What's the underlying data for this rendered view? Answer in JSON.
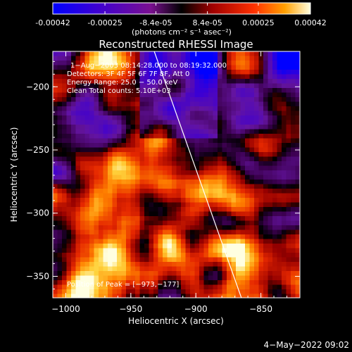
{
  "colorbar": {
    "tick_labels": [
      "-0.00042",
      "-0.00025",
      "-8.4e-05",
      "8.4e-05",
      "0.00025",
      "0.00042"
    ],
    "tick_values": [
      -0.00042,
      -0.00025,
      -8.4e-05,
      8.4e-05,
      0.00025,
      0.00042
    ],
    "range": [
      -0.00042,
      0.00042
    ],
    "units_label": "(photons cm⁻² s⁻¹ asec⁻²)"
  },
  "plot": {
    "title": "Reconstructed RHESSI Image",
    "xlabel": "Heliocentric X (arcsec)",
    "ylabel": "Heliocentric Y (arcsec)",
    "x_ticks": [
      "−1000",
      "−950",
      "−900",
      "−850"
    ],
    "x_tick_values": [
      -1000,
      -950,
      -900,
      -850
    ],
    "y_ticks": [
      "−200",
      "−250",
      "−300",
      "−350"
    ],
    "y_tick_values": [
      -200,
      -250,
      -300,
      -350
    ],
    "xlim": [
      -1010,
      -820
    ],
    "ylim": [
      -367,
      -172
    ],
    "limb_line": [
      [
        -932,
        -172
      ],
      [
        -865,
        -367
      ]
    ],
    "info_lines": [
      "1−Aug−2003 08:14:28.000 to 08:19:32.000",
      "Detectors: 3F 4F 5F 6F 7F 8F, Att 0",
      "Energy Range: 25.0 − 50.0 keV",
      "Clean    Total counts: 5.10E+03"
    ],
    "peak_label": "Position of Peak = [−973,−177]"
  },
  "footer": {
    "timestamp": "4−May−2022 09:02"
  },
  "colors": {
    "background": "#000000",
    "text": "#ffffff"
  }
}
